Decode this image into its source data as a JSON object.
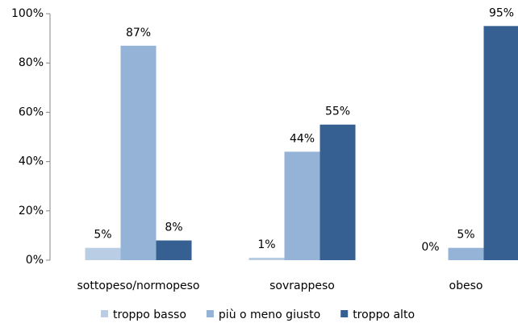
{
  "chart_data": {
    "type": "bar",
    "categories": [
      "sottopeso/normopeso",
      "sovrappeso",
      "obeso"
    ],
    "series": [
      {
        "name": "troppo basso",
        "color": "#b9cde5",
        "values": [
          5,
          1,
          0
        ],
        "value_labels": [
          "5%",
          "1%",
          "0%"
        ]
      },
      {
        "name": "più o meno giusto",
        "color": "#95b3d7",
        "values": [
          87,
          44,
          5
        ],
        "value_labels": [
          "87%",
          "44%",
          "5%"
        ]
      },
      {
        "name": "troppo alto",
        "color": "#376092",
        "values": [
          8,
          55,
          95
        ],
        "value_labels": [
          "8%",
          "55%",
          "95%"
        ]
      }
    ],
    "ylim": [
      0,
      100
    ],
    "yticks": [
      {
        "value": 0,
        "label": "0%"
      },
      {
        "value": 20,
        "label": "20%"
      },
      {
        "value": 40,
        "label": "40%"
      },
      {
        "value": 60,
        "label": "60%"
      },
      {
        "value": 80,
        "label": "80%"
      },
      {
        "value": 100,
        "label": "100%"
      }
    ],
    "legend": "bottom"
  }
}
